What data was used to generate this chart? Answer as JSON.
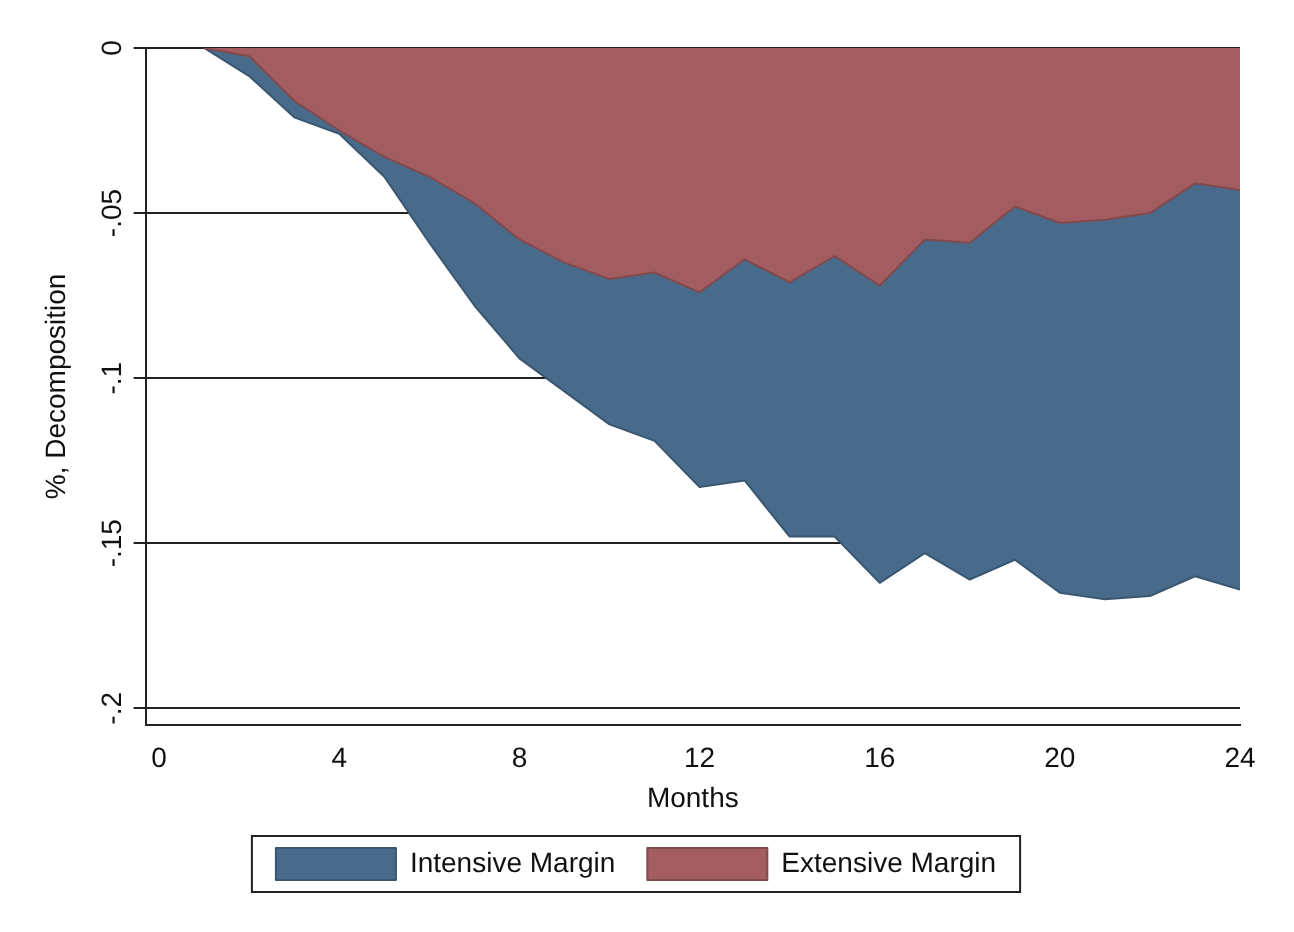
{
  "chart_data": {
    "type": "area",
    "xlabel": "Months",
    "ylabel": "%, Decomposition",
    "stacked": true,
    "legend": "bottom",
    "grid": "y",
    "x": [
      1,
      2,
      3,
      4,
      5,
      6,
      7,
      8,
      9,
      10,
      11,
      12,
      13,
      14,
      15,
      16,
      17,
      18,
      19,
      20,
      21,
      22,
      23,
      24
    ],
    "series": [
      {
        "name": "Extensive Margin",
        "color": "#a35c5f",
        "values": [
          0,
          -0.0025,
          -0.016,
          -0.025,
          -0.033,
          -0.039,
          -0.047,
          -0.058,
          -0.065,
          -0.07,
          -0.068,
          -0.074,
          -0.064,
          -0.071,
          -0.063,
          -0.072,
          -0.058,
          -0.059,
          -0.048,
          -0.053,
          -0.052,
          -0.05,
          -0.041,
          -0.043
        ]
      },
      {
        "name": "Intensive Margin",
        "color": "#486b8c",
        "values": [
          0,
          -0.006,
          -0.005,
          -0.001,
          -0.006,
          -0.02,
          -0.031,
          -0.036,
          -0.039,
          -0.044,
          -0.051,
          -0.059,
          -0.067,
          -0.077,
          -0.085,
          -0.09,
          -0.095,
          -0.102,
          -0.107,
          -0.112,
          -0.115,
          -0.116,
          -0.119,
          -0.121
        ]
      }
    ],
    "xlim": [
      -0.3,
      24
    ],
    "xticks": [
      0,
      4,
      8,
      12,
      16,
      20,
      24
    ],
    "ylim": [
      -0.205,
      0
    ],
    "yticks": [
      {
        "value": 0,
        "label": "0"
      },
      {
        "value": -0.05,
        "label": "-.05"
      },
      {
        "value": -0.1,
        "label": "-.1"
      },
      {
        "value": -0.15,
        "label": "-.15"
      },
      {
        "value": -0.2,
        "label": "-.2"
      }
    ]
  }
}
